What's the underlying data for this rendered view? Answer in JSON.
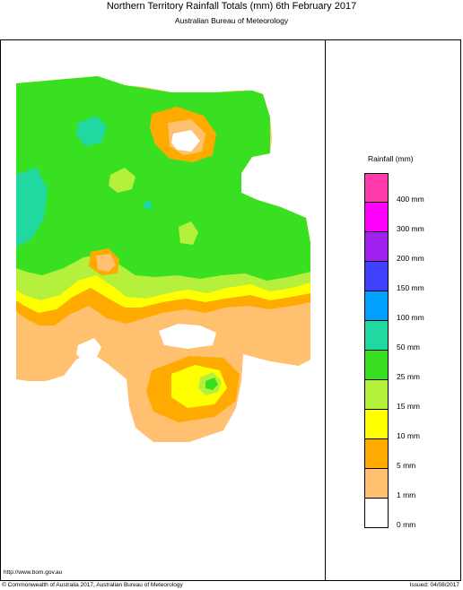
{
  "title": "Northern Territory Rainfall Totals (mm) 6th February 2017",
  "subtitle": "Australian Bureau of Meteorology",
  "legend": {
    "title": "Rainfall (mm)",
    "colors": [
      "#ff3caa",
      "#ff00ff",
      "#a020f0",
      "#4040ff",
      "#00a0ff",
      "#20d8a0",
      "#39e022",
      "#b4f03c",
      "#ffff00",
      "#ffaa00",
      "#ffc070",
      "#ffffff"
    ],
    "labels": [
      "400 mm",
      "300 mm",
      "200 mm",
      "150 mm",
      "100 mm",
      "50 mm",
      "25 mm",
      "15 mm",
      "10 mm",
      "5 mm",
      "1 mm",
      "0 mm"
    ]
  },
  "footer": {
    "url": "http://www.bom.gov.au",
    "copyright": "© Commonwealth of Australia 2017, Australian Bureau of Meteorology",
    "issued": "Issued: 04/08/2017"
  }
}
